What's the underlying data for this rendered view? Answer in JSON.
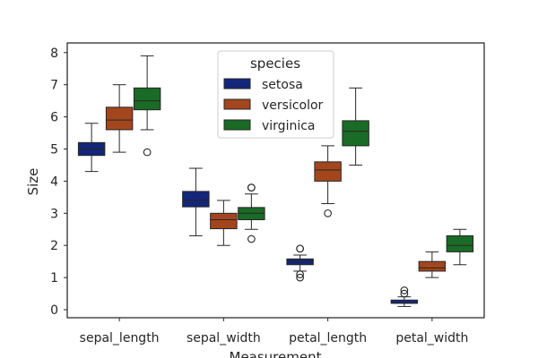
{
  "chart_data": {
    "type": "box",
    "categories": [
      "sepal_length",
      "sepal_width",
      "petal_length",
      "petal_width"
    ],
    "xlabel": "Measurement",
    "ylabel": "Size",
    "ylim": [
      -0.25,
      8.3
    ],
    "yticks": [
      0,
      1,
      2,
      3,
      4,
      5,
      6,
      7,
      8
    ],
    "grid": false,
    "legend": {
      "title": "species",
      "placement": "top-center"
    },
    "series": [
      {
        "name": "setosa",
        "color": "#13267a",
        "boxes": [
          {
            "whislo": 4.3,
            "q1": 4.8,
            "med": 5.0,
            "q3": 5.2,
            "whishi": 5.8,
            "fliers": []
          },
          {
            "whislo": 2.3,
            "q1": 3.2,
            "med": 3.4,
            "q3": 3.68,
            "whishi": 4.4,
            "fliers": []
          },
          {
            "whislo": 1.2,
            "q1": 1.4,
            "med": 1.5,
            "q3": 1.58,
            "whishi": 1.7,
            "fliers": [
              1.0,
              1.1,
              1.9,
              1.9
            ]
          },
          {
            "whislo": 0.1,
            "q1": 0.2,
            "med": 0.2,
            "q3": 0.3,
            "whishi": 0.4,
            "fliers": [
              0.5,
              0.6
            ]
          }
        ]
      },
      {
        "name": "versicolor",
        "color": "#a3461e",
        "boxes": [
          {
            "whislo": 4.9,
            "q1": 5.6,
            "med": 5.9,
            "q3": 6.3,
            "whishi": 7.0,
            "fliers": []
          },
          {
            "whislo": 2.0,
            "q1": 2.52,
            "med": 2.8,
            "q3": 3.0,
            "whishi": 3.4,
            "fliers": []
          },
          {
            "whislo": 3.3,
            "q1": 4.0,
            "med": 4.35,
            "q3": 4.6,
            "whishi": 5.1,
            "fliers": [
              3.0
            ]
          },
          {
            "whislo": 1.0,
            "q1": 1.2,
            "med": 1.3,
            "q3": 1.5,
            "whishi": 1.8,
            "fliers": []
          }
        ]
      },
      {
        "name": "virginica",
        "color": "#1a6b26",
        "boxes": [
          {
            "whislo": 5.6,
            "q1": 6.22,
            "med": 6.5,
            "q3": 6.9,
            "whishi": 7.9,
            "fliers": [
              4.9
            ]
          },
          {
            "whislo": 2.5,
            "q1": 2.8,
            "med": 3.0,
            "q3": 3.18,
            "whishi": 3.6,
            "fliers": [
              2.2,
              3.8,
              3.8
            ]
          },
          {
            "whislo": 4.5,
            "q1": 5.1,
            "med": 5.55,
            "q3": 5.88,
            "whishi": 6.9,
            "fliers": []
          },
          {
            "whislo": 1.4,
            "q1": 1.8,
            "med": 2.0,
            "q3": 2.3,
            "whishi": 2.5,
            "fliers": []
          }
        ]
      }
    ]
  }
}
